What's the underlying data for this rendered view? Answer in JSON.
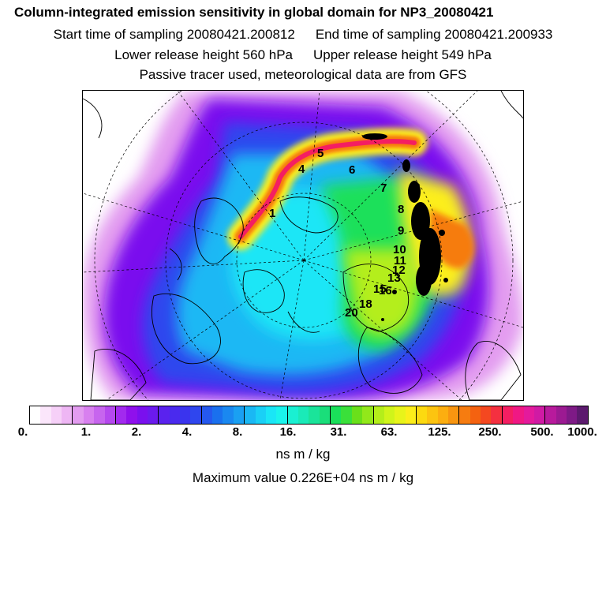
{
  "title": "Column-integrated emission sensitivity in global domain for NP3_20080421",
  "sampling": {
    "start": "Start time of sampling 20080421.200812",
    "end": "End time of sampling 20080421.200933"
  },
  "release": {
    "lower": "Lower release height  560 hPa",
    "upper": "Upper release height  549 hPa"
  },
  "note": "Passive tracer used, meteorological data are from GFS",
  "map": {
    "trajectory_labels": [
      "1",
      "4",
      "5",
      "6",
      "7",
      "8",
      "9",
      "10",
      "11",
      "12",
      "13",
      "15",
      "16",
      "18",
      "20"
    ]
  },
  "colorbar": {
    "colors": [
      "#ffffff",
      "#fbe6fb",
      "#f6d0f8",
      "#eeb6f4",
      "#e39cf0",
      "#d880ef",
      "#c765ee",
      "#b548ee",
      "#a22aee",
      "#8f10ec",
      "#7a10ee",
      "#6b1aee",
      "#5a22ee",
      "#4a2aee",
      "#3a34ee",
      "#2f46ee",
      "#2558ee",
      "#1a70ee",
      "#1a88f0",
      "#1aa0f2",
      "#1ab8f4",
      "#1ad0f6",
      "#1ae6f6",
      "#1af4ec",
      "#1af0d2",
      "#1aeab8",
      "#1ae49a",
      "#1ade7a",
      "#1ae05a",
      "#3ae03a",
      "#6ae01a",
      "#92e81a",
      "#b4ee1a",
      "#d0f41a",
      "#e8f41a",
      "#fcee1a",
      "#fcda10",
      "#fcc410",
      "#fcae10",
      "#f89510",
      "#f67c10",
      "#f46210",
      "#f44820",
      "#f43040",
      "#f41e62",
      "#f01884",
      "#e41a9c",
      "#d01aa4",
      "#b81a9c",
      "#9c1a92",
      "#7e1a86",
      "#5c1a6e"
    ],
    "ticks": [
      "0.",
      "1.",
      "2.",
      "4.",
      "8.",
      "16.",
      "31.",
      "63.",
      "125.",
      "250.",
      "500.",
      "1000."
    ],
    "unit": "ns m / kg"
  },
  "maximum": "Maximum value  0.226E+04 ns m / kg"
}
